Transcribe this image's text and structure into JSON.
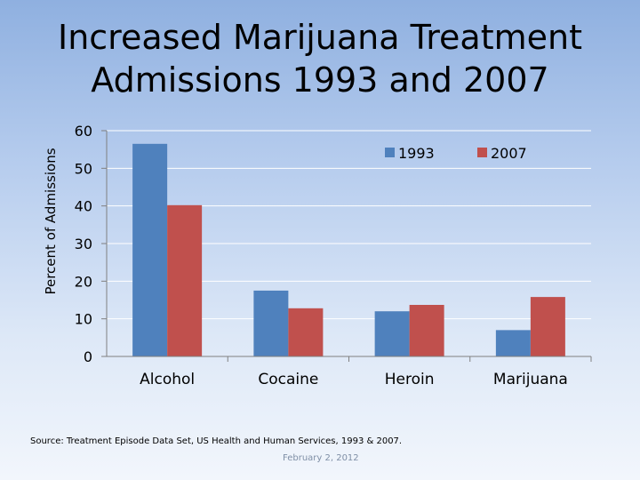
{
  "chart_data": {
    "type": "bar",
    "title": [
      "Increased Marijuana Treatment",
      "Admissions 1993 and 2007"
    ],
    "ylabel": "Percent of Admissions",
    "xlabel": "",
    "categories": [
      "Alcohol",
      "Cocaine",
      "Heroin",
      "Marijuana"
    ],
    "series": [
      {
        "name": "1993",
        "values": [
          56.5,
          17.5,
          12,
          7
        ],
        "color": "#4f81bd"
      },
      {
        "name": "2007",
        "values": [
          40.2,
          12.8,
          13.7,
          15.8
        ],
        "color": "#c0504d"
      }
    ],
    "ylim": [
      0,
      60
    ],
    "yticks": [
      0,
      10,
      20,
      30,
      40,
      50,
      60
    ],
    "grid": true,
    "legend": "top-right"
  },
  "footer": {
    "source": "Source: Treatment Episode Data Set, US Health and Human Services, 1993 & 2007.",
    "date": "February 2, 2012"
  }
}
